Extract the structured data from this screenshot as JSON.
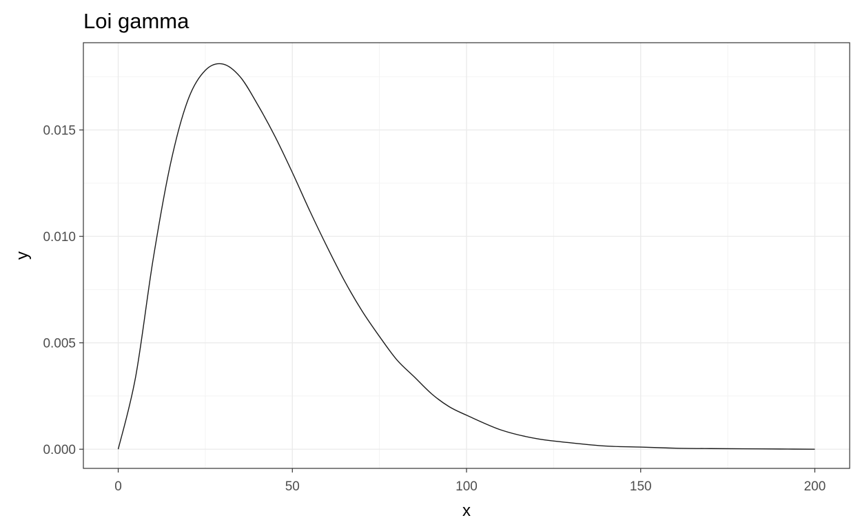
{
  "chart_data": {
    "type": "line",
    "title": "Loi gamma",
    "xlabel": "x",
    "ylabel": "y",
    "xlim": [
      -10,
      210
    ],
    "ylim": [
      -0.0009,
      0.0191
    ],
    "x_ticks": [
      0,
      50,
      100,
      150,
      200
    ],
    "x_tick_labels": [
      "0",
      "50",
      "100",
      "150",
      "200"
    ],
    "y_ticks": [
      0.0,
      0.005,
      0.01,
      0.015
    ],
    "y_tick_labels": [
      "0.000",
      "0.005",
      "0.010",
      "0.015"
    ],
    "grid": true,
    "series": [
      {
        "x": [
          0,
          5,
          10,
          15,
          20,
          25,
          30,
          35,
          40,
          45,
          50,
          55,
          60,
          65,
          70,
          75,
          80,
          85,
          90,
          95,
          100,
          110,
          120,
          130,
          140,
          150,
          160,
          170,
          180,
          190,
          200
        ],
        "values": [
          0.0,
          0.0034,
          0.0089,
          0.0134,
          0.0164,
          0.0178,
          0.0181,
          0.0175,
          0.0162,
          0.0147,
          0.013,
          0.0112,
          0.0095,
          0.0079,
          0.0065,
          0.0053,
          0.0042,
          0.0034,
          0.0026,
          0.002,
          0.0016,
          0.0009,
          0.0005,
          0.0003,
          0.00015,
          0.0001,
          5e-05,
          3e-05,
          2e-05,
          1e-05,
          0.0
        ]
      }
    ]
  }
}
